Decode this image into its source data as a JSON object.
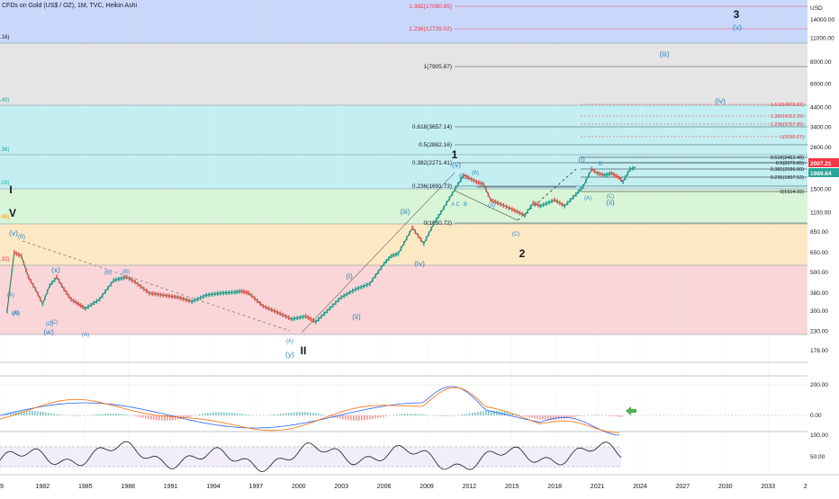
{
  "header": {
    "title": "CFDs on Gold (US$ / OZ), 1M, TVC, Heikin Ashi"
  },
  "price_axis": {
    "currency": "USD",
    "ticks": [
      "14000.00",
      "11000.00",
      "8000.00",
      "6000.00",
      "4400.00",
      "3400.00",
      "2600.00",
      "1500.00",
      "1100.00",
      "850.00",
      "650.00",
      "500.00",
      "380.00",
      "300.00",
      "230.00",
      "178.00"
    ],
    "last_price": "2007.21",
    "second_price": "1989.64",
    "last_price_color": "#f23645",
    "second_price_color": "#26a69a"
  },
  "time_axis": {
    "labels": [
      "79",
      "1982",
      "1985",
      "1988",
      "1991",
      "1994",
      "1997",
      "2000",
      "2003",
      "2006",
      "2009",
      "2012",
      "2015",
      "2018",
      "2021",
      "2024",
      "2027",
      "2030",
      "2033",
      "2036"
    ]
  },
  "left_edge_labels": [
    ".16)",
    ",40)",
    ".36)",
    ".03)",
    ".68)",
    ".32)"
  ],
  "zones": {
    "colors": [
      "#c9d7fb",
      "#e5e5e5",
      "#c4eff2",
      "#d9f5d7",
      "#fde8c4",
      "#fbd6d8"
    ]
  },
  "fib_levels_main": [
    {
      "label": "1.382(17090.65)",
      "color": "#f23645"
    },
    {
      "label": "1.236(12729.02)",
      "color": "#f23645"
    },
    {
      "label": "1(7905.87)",
      "color": "#131722"
    },
    {
      "label": "0.618(3657.14)",
      "color": "#131722"
    },
    {
      "label": "0.5(2882.16)",
      "color": "#131722"
    },
    {
      "label": "0.382(2271.41)",
      "color": "#131722"
    },
    {
      "label": "0.236(1691.73)",
      "color": "#131722"
    },
    {
      "label": "0(1050.72)",
      "color": "#131722"
    }
  ],
  "fib_levels_right": [
    {
      "label": "1.618(4878.82)",
      "color": "#f23645"
    },
    {
      "label": "1.382(4152.20)",
      "color": "#f23645"
    },
    {
      "label": "1.236(3757.95)",
      "color": "#f23645"
    },
    {
      "label": "1(3190.27)",
      "color": "#f23645"
    },
    {
      "label": "0.618(2463.49)",
      "color": "#131722"
    },
    {
      "label": "0.5(2272.65)",
      "color": "#131722"
    },
    {
      "label": "0.382(2096.60)",
      "color": "#131722"
    },
    {
      "label": "0.236(1897.52)",
      "color": "#131722"
    },
    {
      "label": "0(1614.92)",
      "color": "#131722"
    }
  ],
  "wave_labels_large": [
    "3",
    "I",
    "V",
    "II",
    "1",
    "2"
  ],
  "wave_labels_blue": [
    "(v)",
    "(iii)",
    "(iv)",
    "(i)",
    "(ii)",
    "(iii)",
    "(iv)",
    "(ii)",
    "(v)",
    "(x)",
    "(w)",
    "(y)",
    "(v)",
    "(i)"
  ],
  "wave_labels_small": [
    "(A)",
    "(B)",
    "(C)",
    "(A)",
    "(B)",
    "(A)",
    "(C)",
    "(A)",
    "(B)",
    "(C)",
    "(A)",
    "(C)",
    "A C",
    "B",
    "E",
    "D",
    "(B)",
    "(A)",
    "(C)",
    "(B)"
  ],
  "macd_panel": {
    "ticks": [
      "200.00",
      "0.00"
    ],
    "arrow_color": "#4caf50"
  },
  "rsi_panel": {
    "ticks": [
      "100.00",
      "50.00"
    ]
  },
  "chart_data": {
    "type": "line",
    "title": "CFDs on Gold (US$ / OZ), 1M, TVC, Heikin Ashi",
    "xlabel": "",
    "ylabel": "USD",
    "y_scale": "log",
    "ylim": [
      178,
      18000
    ],
    "xlim": [
      1979,
      2036
    ],
    "grid": true,
    "series": [
      {
        "name": "",
        "x": [
          1979.5,
          1980.0,
          1980.5,
          1981.0,
          1981.5,
          1982.0,
          1982.5,
          1983.0,
          1983.5,
          1984.0,
          1984.5,
          1985.0,
          1986.0,
          1987.0,
          1987.9,
          1988.5,
          1989.5,
          1990.5,
          1991.5,
          1992.5,
          1993.5,
          1994.5,
          1995.5,
          1996.0,
          1996.5,
          1997.5,
          1998.5,
          1999.5,
          2000.5,
          2001.2,
          2002.0,
          2003.0,
          2004.0,
          2005.0,
          2006.0,
          2006.5,
          2007.0,
          2008.0,
          2008.8,
          2009.5,
          2010.0,
          2011.0,
          2011.6,
          2012.5,
          2013.0,
          2013.5,
          2014.0,
          2015.0,
          2015.9,
          2016.5,
          2017.0,
          2018.0,
          2018.7,
          2019.5,
          2020.0,
          2020.6,
          2021.0,
          2021.5,
          2022.0,
          2022.5,
          2022.8,
          2023.3,
          2023.7
        ],
        "values": [
          300,
          650,
          620,
          470,
          400,
          330,
          420,
          470,
          400,
          350,
          330,
          310,
          350,
          450,
          470,
          440,
          380,
          370,
          360,
          340,
          370,
          380,
          385,
          390,
          380,
          320,
          295,
          270,
          280,
          260,
          300,
          360,
          400,
          430,
          560,
          620,
          640,
          900,
          730,
          950,
          1100,
          1500,
          1800,
          1650,
          1600,
          1300,
          1250,
          1150,
          1060,
          1250,
          1200,
          1300,
          1200,
          1400,
          1550,
          1950,
          1850,
          1800,
          1850,
          1750,
          1650,
          1950,
          2000
        ]
      }
    ]
  }
}
